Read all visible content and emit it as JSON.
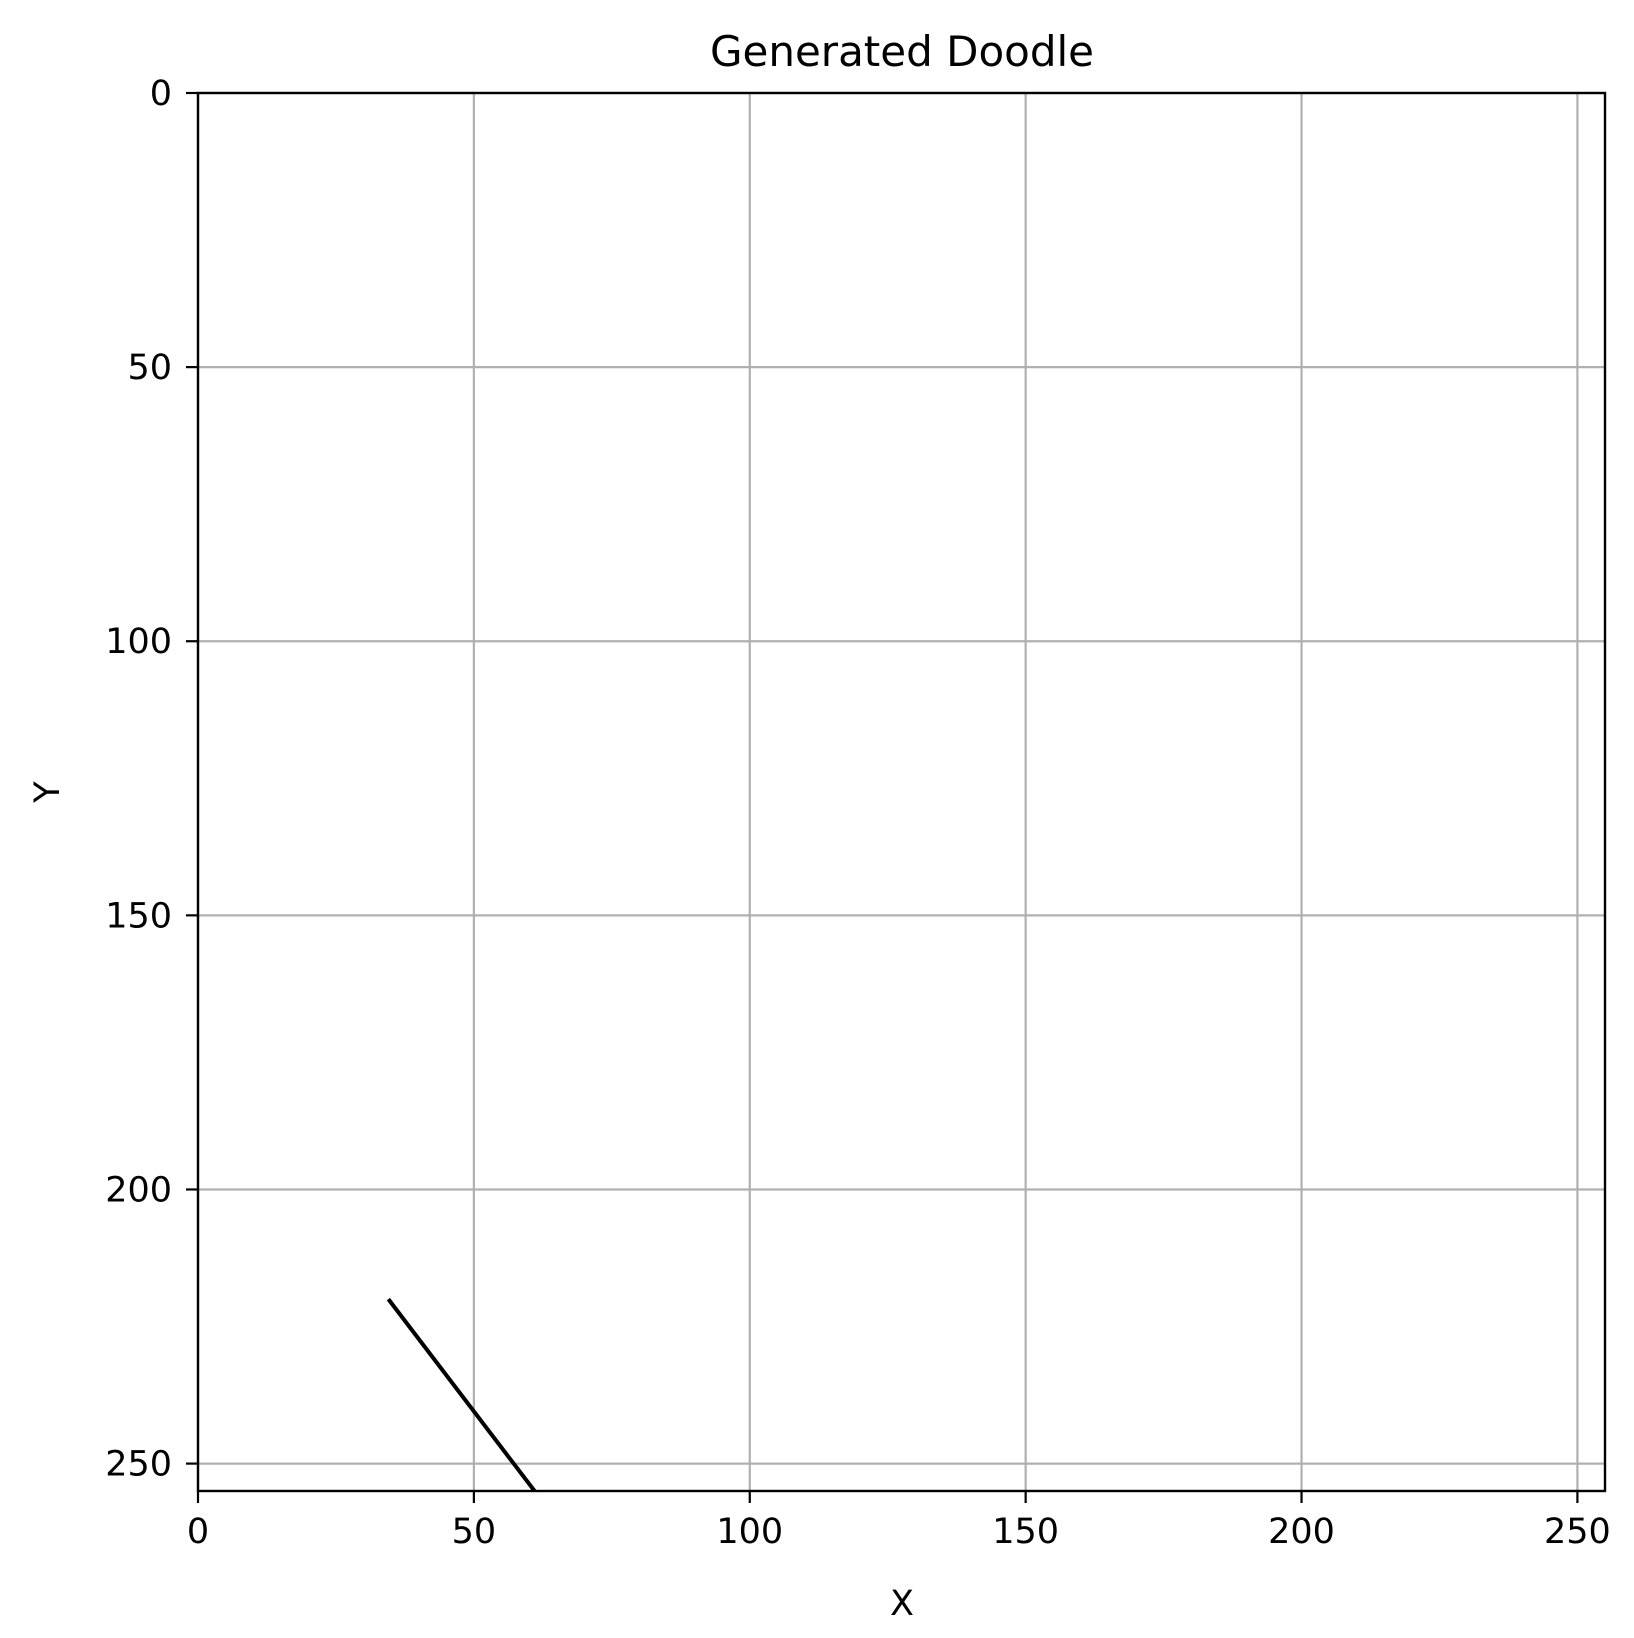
{
  "chart_data": {
    "type": "line",
    "title": "Generated Doodle",
    "xlabel": "X",
    "ylabel": "Y",
    "xlim": [
      0,
      255
    ],
    "ylim": [
      255,
      0
    ],
    "y_inverted": true,
    "grid": true,
    "x_ticks": [
      0,
      50,
      100,
      150,
      200,
      250
    ],
    "y_ticks": [
      0,
      50,
      100,
      150,
      200,
      250
    ],
    "x_tick_labels": [
      "0",
      "50",
      "100",
      "150",
      "200",
      "250"
    ],
    "y_tick_labels": [
      "0",
      "50",
      "100",
      "150",
      "200",
      "250"
    ],
    "series": [
      {
        "x": [
          34.5,
          61
        ],
        "y": [
          220,
          255
        ],
        "color": "#000000"
      }
    ],
    "colors": {
      "grid": "#b0b0b0",
      "axes": "#000000",
      "background": "#ffffff"
    }
  }
}
